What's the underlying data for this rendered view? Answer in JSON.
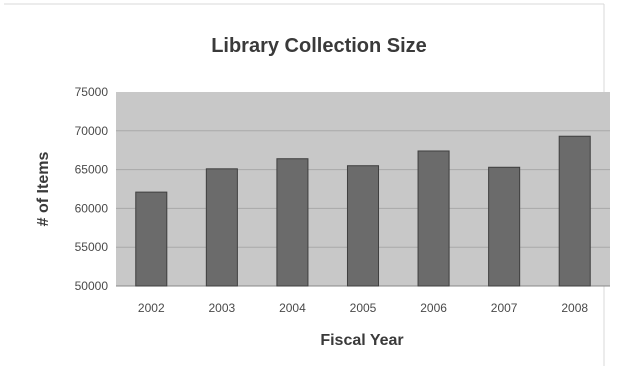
{
  "chart_data": {
    "type": "bar",
    "title": "Library Collection Size",
    "xlabel": "Fiscal Year",
    "ylabel": "# of Items",
    "categories": [
      "2002",
      "2003",
      "2004",
      "2005",
      "2006",
      "2007",
      "2008"
    ],
    "series": [
      {
        "values": [
          62100,
          65100,
          66400,
          65500,
          67400,
          65300,
          69300
        ]
      }
    ],
    "ylim": [
      50000,
      75000
    ],
    "yticks": [
      "50000",
      "55000",
      "60000",
      "65000",
      "70000",
      "75000"
    ],
    "grid": true,
    "legend": "none"
  },
  "colors": {
    "plot_background": "#c8c8c8",
    "bar_fill": "#6b6b6b",
    "bar_edge": "#3f3f3f",
    "gridline": "#a9a9a9",
    "axis_line": "#888888",
    "page_frame_border": "#d9d9d9"
  }
}
